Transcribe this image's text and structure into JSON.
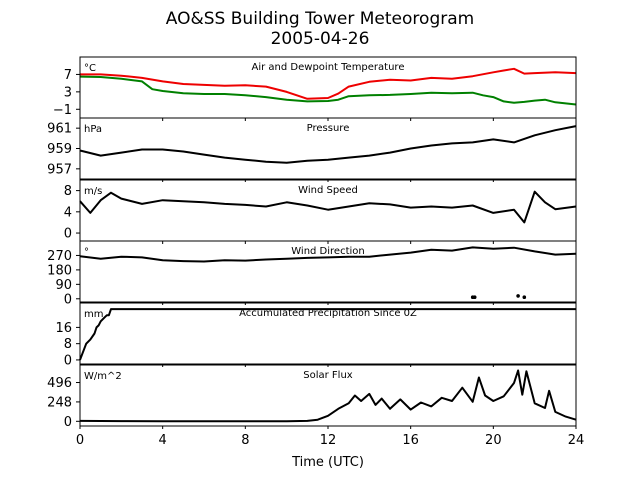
{
  "figure": {
    "title": "AO&SS Building Tower Meteorogram",
    "subtitle": "2005-04-26",
    "xlabel": "Time (UTC)"
  },
  "chart_data": {
    "type": "line",
    "x_ticks": [
      0,
      4,
      8,
      12,
      16,
      20,
      24
    ],
    "x_tick_labels": [
      "0",
      "4",
      "8",
      "12",
      "16",
      "20",
      "24"
    ],
    "xlim": [
      0,
      24
    ],
    "panels": [
      {
        "title": "Air and Dewpoint Temperature",
        "unit": "°C",
        "ylim": [
          -3,
          11
        ],
        "y_ticks": [
          -1,
          3,
          7
        ],
        "y_tick_labels": [
          "−1",
          "3",
          "7"
        ],
        "series": [
          {
            "color": "#ee0000",
            "x": [
              0,
              1,
              2,
              3,
              4,
              5,
              6,
              7,
              8,
              9,
              10,
              11,
              12,
              12.5,
              13,
              14,
              15,
              16,
              17,
              18,
              19,
              20,
              20.5,
              21,
              21.5,
              22,
              23,
              24
            ],
            "y": [
              7.0,
              7.0,
              6.7,
              6.2,
              5.4,
              4.8,
              4.6,
              4.4,
              4.5,
              4.2,
              3.0,
              1.4,
              1.6,
              2.6,
              4.2,
              5.3,
              5.8,
              5.6,
              6.2,
              6.0,
              6.6,
              7.5,
              7.9,
              8.3,
              7.2,
              7.3,
              7.5,
              7.3
            ]
          },
          {
            "color": "#008000",
            "x": [
              0,
              1,
              2,
              3,
              3.5,
              4,
              5,
              6,
              7,
              8,
              9,
              10,
              11,
              12,
              12.5,
              13,
              14,
              15,
              16,
              17,
              18,
              19,
              19.5,
              20,
              20.5,
              21,
              21.5,
              22,
              22.5,
              23,
              24
            ],
            "y": [
              6.5,
              6.4,
              6.0,
              5.4,
              3.6,
              3.2,
              2.7,
              2.5,
              2.5,
              2.2,
              1.8,
              1.2,
              0.8,
              0.9,
              1.2,
              2.0,
              2.2,
              2.3,
              2.5,
              2.8,
              2.7,
              2.8,
              2.2,
              1.8,
              0.8,
              0.5,
              0.7,
              1.0,
              1.2,
              0.6,
              0.1
            ]
          }
        ]
      },
      {
        "title": "Pressure",
        "unit": "hPa",
        "ylim": [
          956,
          962
        ],
        "y_ticks": [
          957,
          959,
          961
        ],
        "y_tick_labels": [
          "957",
          "959",
          "961"
        ],
        "series": [
          {
            "color": "#000000",
            "x": [
              0,
              1,
              2,
              3,
              4,
              5,
              6,
              7,
              8,
              9,
              10,
              11,
              12,
              13,
              14,
              15,
              16,
              17,
              18,
              19,
              20,
              21,
              22,
              23,
              24
            ],
            "y": [
              958.8,
              958.3,
              958.6,
              958.9,
              958.9,
              958.7,
              958.4,
              958.1,
              957.9,
              957.7,
              957.6,
              957.8,
              957.9,
              958.1,
              958.3,
              958.6,
              959.0,
              959.3,
              959.5,
              959.6,
              959.9,
              959.6,
              960.3,
              960.8,
              961.2
            ]
          }
        ]
      },
      {
        "title": "Wind Speed",
        "unit": "m/s",
        "ylim": [
          -1.5,
          10
        ],
        "y_ticks": [
          0,
          4,
          8
        ],
        "y_tick_labels": [
          "0",
          "4",
          "8"
        ],
        "series": [
          {
            "color": "#000000",
            "x": [
              0,
              0.5,
              1,
              1.5,
              2,
              3,
              4,
              5,
              6,
              7,
              8,
              9,
              10,
              11,
              12,
              13,
              14,
              15,
              16,
              17,
              18,
              19,
              20,
              21,
              21.5,
              22,
              22.5,
              23,
              24
            ],
            "y": [
              6.0,
              3.8,
              6.2,
              7.6,
              6.5,
              5.5,
              6.2,
              6.0,
              5.8,
              5.5,
              5.3,
              5.0,
              5.8,
              5.2,
              4.4,
              5.0,
              5.6,
              5.4,
              4.8,
              5.0,
              4.8,
              5.2,
              3.8,
              4.4,
              2.0,
              7.8,
              5.8,
              4.5,
              5.0
            ]
          }
        ]
      },
      {
        "title": "Wind Direction",
        "unit": "°",
        "ylim": [
          -20,
          360
        ],
        "y_ticks": [
          0,
          90,
          180,
          270
        ],
        "y_tick_labels": [
          "0",
          "90",
          "180",
          "270"
        ],
        "series": [
          {
            "color": "#000000",
            "x": [
              0,
              1,
              2,
              3,
              4,
              5,
              6,
              7,
              8,
              9,
              10,
              11,
              12,
              13,
              14,
              15,
              16,
              17,
              18,
              19,
              20,
              21,
              22,
              23,
              24
            ],
            "y": [
              265,
              250,
              262,
              258,
              240,
              235,
              232,
              240,
              238,
              245,
              250,
              255,
              258,
              262,
              262,
              275,
              288,
              305,
              300,
              320,
              312,
              318,
              295,
              275,
              280
            ]
          }
        ],
        "dots": {
          "x": [
            19.0,
            19.1,
            21.2,
            21.5
          ],
          "y": [
            10,
            10,
            18,
            10
          ]
        }
      },
      {
        "title": "Accumulated Precipitation Since 0Z",
        "unit": "mm",
        "ylim": [
          -2,
          28
        ],
        "y_ticks": [
          0,
          8,
          16
        ],
        "y_tick_labels": [
          "0",
          "8",
          "16"
        ],
        "series": [
          {
            "color": "#000000",
            "x": [
              0,
              0.3,
              0.5,
              0.7,
              0.8,
              0.9,
              1.0,
              1.1,
              1.2,
              1.3,
              1.4,
              1.5,
              24
            ],
            "y": [
              0,
              8,
              10,
              13,
              16,
              17,
              19,
              20,
              21,
              22,
              22,
              25,
              25
            ]
          }
        ]
      },
      {
        "title": "Solar Flux",
        "unit": "W/m^2",
        "ylim": [
          -60,
          720
        ],
        "y_ticks": [
          0,
          248,
          496
        ],
        "y_tick_labels": [
          "0",
          "248",
          "496"
        ],
        "series": [
          {
            "color": "#000000",
            "x": [
              0,
              2,
              4,
              6,
              8,
              10,
              11,
              11.5,
              12,
              12.5,
              13,
              13.3,
              13.6,
              14,
              14.3,
              14.6,
              15,
              15.5,
              16,
              16.5,
              17,
              17.5,
              18,
              18.5,
              19,
              19.3,
              19.6,
              20,
              20.5,
              21,
              21.2,
              21.4,
              21.6,
              22,
              22.5,
              22.7,
              23,
              23.5,
              24
            ],
            "y": [
              5,
              3,
              2,
              1,
              1,
              2,
              5,
              20,
              70,
              160,
              230,
              330,
              260,
              350,
              210,
              290,
              160,
              280,
              150,
              240,
              190,
              300,
              260,
              430,
              250,
              560,
              330,
              260,
              320,
              490,
              650,
              340,
              640,
              230,
              170,
              390,
              120,
              60,
              20
            ]
          }
        ]
      }
    ]
  }
}
